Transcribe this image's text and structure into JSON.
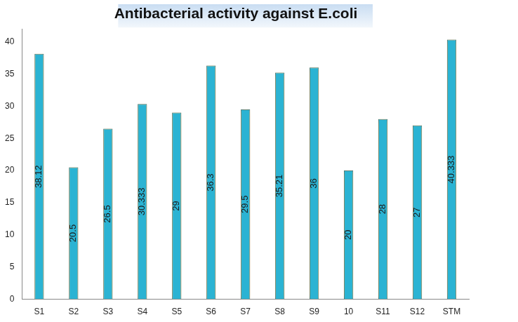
{
  "chart_data": {
    "type": "bar",
    "title": "Antibacterial activity against E.coli",
    "categories": [
      "S1",
      "S2",
      "S3",
      "S4",
      "S5",
      "S6",
      "S7",
      "S8",
      "S9",
      "10",
      "S11",
      "S12",
      "STM"
    ],
    "values": [
      38.12,
      20.5,
      26.5,
      30.333,
      29,
      36.3,
      29.5,
      35.21,
      36,
      20,
      28,
      27,
      40.333
    ],
    "color": "#2bb3d3",
    "ylim": [
      0,
      42
    ],
    "yticks": [
      0,
      5,
      10,
      15,
      20,
      25,
      30,
      35,
      40
    ],
    "grid": false,
    "data_labels": true
  }
}
